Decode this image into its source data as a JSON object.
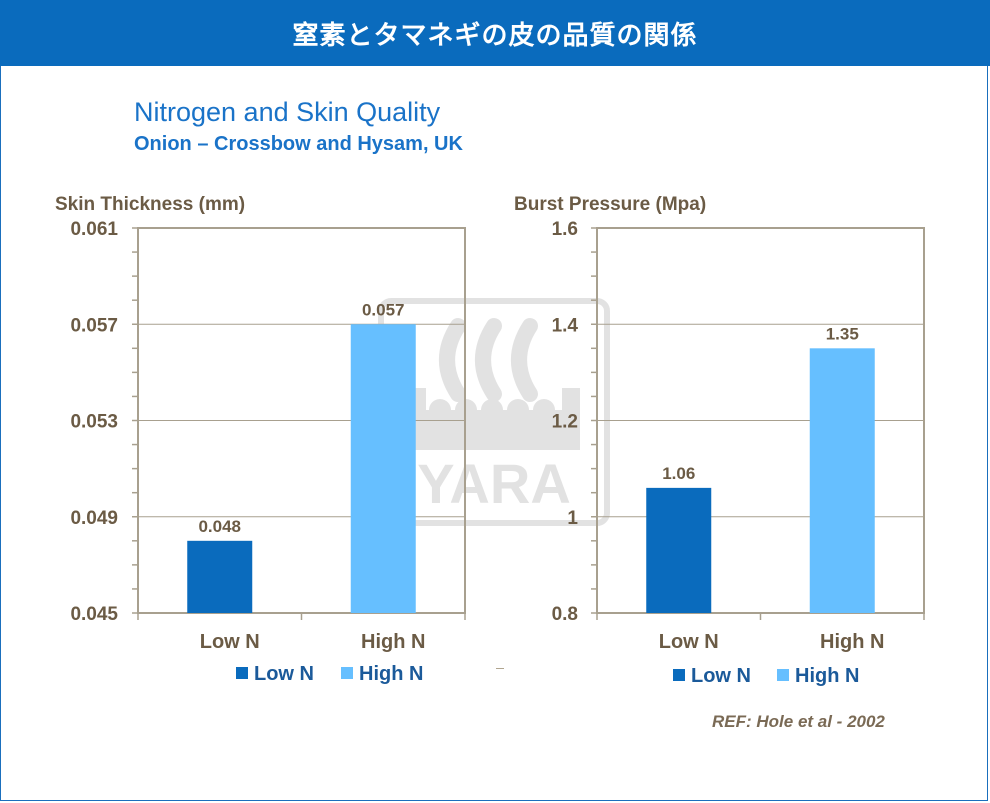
{
  "banner": {
    "title": "窒素とタマネギの皮の品質の関係"
  },
  "heading": {
    "title": "Nitrogen and Skin Quality",
    "subtitle": "Onion – Crossbow and Hysam, UK"
  },
  "reference": "REF: Hole et al -  2002",
  "watermark": {
    "text": "YARA"
  },
  "colors": {
    "banner": "#0a6bbd",
    "low_n": "#0a6bbd",
    "high_n": "#66bfff",
    "text": "#6b5b45",
    "title": "#1a73c8"
  },
  "chart_data": [
    {
      "type": "bar",
      "ylabel": "Skin Thickness (mm)",
      "categories": [
        "Low N",
        "High N"
      ],
      "series": [
        {
          "name": "Low N",
          "values": [
            0.048,
            null
          ]
        },
        {
          "name": "High N",
          "values": [
            null,
            0.057
          ]
        }
      ],
      "values": [
        0.048,
        0.057
      ],
      "data_labels": [
        "0.048",
        "0.057"
      ],
      "ylim": [
        0.045,
        0.061
      ],
      "yticks": [
        0.045,
        0.049,
        0.053,
        0.057,
        0.061
      ],
      "ytick_labels": [
        "0.045",
        "0.049",
        "0.053",
        "0.057",
        "0.061"
      ],
      "grid": true,
      "legend": [
        "Low N",
        "High N"
      ],
      "legend_position": "bottom"
    },
    {
      "type": "bar",
      "ylabel": "Burst Pressure (Mpa)",
      "categories": [
        "Low N",
        "High N"
      ],
      "series": [
        {
          "name": "Low N",
          "values": [
            1.06,
            null
          ]
        },
        {
          "name": "High N",
          "values": [
            null,
            1.35
          ]
        }
      ],
      "values": [
        1.06,
        1.35
      ],
      "data_labels": [
        "1.06",
        "1.35"
      ],
      "ylim": [
        0.8,
        1.6
      ],
      "yticks": [
        0.8,
        1.0,
        1.2,
        1.4,
        1.6
      ],
      "ytick_labels": [
        "0.8",
        "1",
        "1.2",
        "1.4",
        "1.6"
      ],
      "grid": true,
      "legend": [
        "Low N",
        "High N"
      ],
      "legend_position": "bottom"
    }
  ]
}
